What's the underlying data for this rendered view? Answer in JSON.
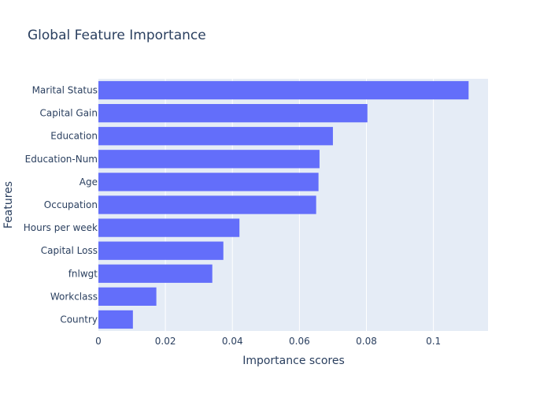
{
  "chart_data": {
    "type": "bar",
    "orientation": "horizontal",
    "title": "Global Feature Importance",
    "xlabel": "Importance scores",
    "ylabel": "Features",
    "categories": [
      "Marital Status",
      "Capital Gain",
      "Education",
      "Education-Num",
      "Age",
      "Occupation",
      "Hours per week",
      "Capital Loss",
      "fnlwgt",
      "Workclass",
      "Country"
    ],
    "values": [
      0.1105,
      0.0803,
      0.07,
      0.066,
      0.0657,
      0.065,
      0.0421,
      0.0373,
      0.034,
      0.0173,
      0.0103
    ],
    "xlim": [
      0,
      0.1163
    ],
    "x_ticks": [
      0,
      0.02,
      0.04,
      0.06,
      0.08,
      0.1
    ],
    "x_tick_labels": [
      "0",
      "0.02",
      "0.04",
      "0.06",
      "0.08",
      "0.1"
    ],
    "grid": true,
    "colors": {
      "bar": "#636efa",
      "plot_bg": "#e5ecf6",
      "grid": "#ffffff",
      "text": "#2a3f5f"
    }
  }
}
